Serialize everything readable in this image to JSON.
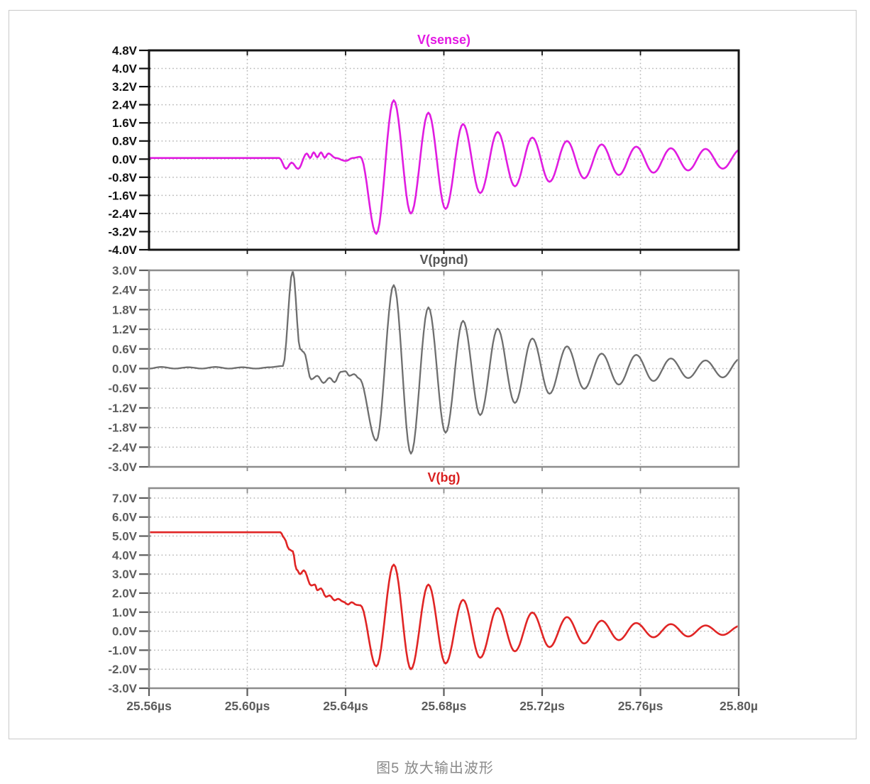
{
  "caption": "图5 放大输出波形",
  "chart_data": {
    "type": "line",
    "description": "Three stacked SPICE transient waveform panes sharing one time axis",
    "t_start": 25.56,
    "t_end": 25.8,
    "time_unit": "µs",
    "grid": "dotted",
    "x_gridlines": [
      25.6,
      25.64,
      25.68,
      25.72,
      25.76
    ],
    "x_ticks": [
      {
        "t": 25.56,
        "label": "25.56µs"
      },
      {
        "t": 25.6,
        "label": "25.60µs"
      },
      {
        "t": 25.64,
        "label": "25.64µs"
      },
      {
        "t": 25.68,
        "label": "25.68µs"
      },
      {
        "t": 25.72,
        "label": "25.72µs"
      },
      {
        "t": 25.76,
        "label": "25.76µs"
      },
      {
        "t": 25.8,
        "label": "25.80µ"
      }
    ],
    "x_label_color": "#5c5c5c",
    "panels": [
      {
        "id": "sense",
        "title": "V(sense)",
        "color": "#e01ce0",
        "title_color": "#e318e3",
        "border_color": "#151515",
        "border_width": 3,
        "label_color": "#111111",
        "stroke_width": 2.6,
        "ylim": [
          -4.0,
          4.8
        ],
        "yticks": [
          {
            "v": 4.8,
            "label": "4.8V"
          },
          {
            "v": 4.0,
            "label": "4.0V"
          },
          {
            "v": 3.2,
            "label": "3.2V"
          },
          {
            "v": 2.4,
            "label": "2.4V"
          },
          {
            "v": 1.6,
            "label": "1.6V"
          },
          {
            "v": 0.8,
            "label": "0.8V"
          },
          {
            "v": 0.0,
            "label": "0.0V"
          },
          {
            "v": -0.8,
            "label": "-0.8V"
          },
          {
            "v": -1.6,
            "label": "-1.6V"
          },
          {
            "v": -2.4,
            "label": "-2.4V"
          },
          {
            "v": -3.2,
            "label": "-3.2V"
          },
          {
            "v": -4.0,
            "label": "-4.0V"
          }
        ],
        "points": [
          [
            25.56,
            0.05
          ],
          [
            25.613,
            0.05
          ],
          [
            25.6158,
            -0.43
          ],
          [
            25.618,
            -0.15
          ],
          [
            25.6207,
            -0.43
          ],
          [
            25.6242,
            0.25
          ],
          [
            25.6256,
            0.05
          ],
          [
            25.627,
            0.3
          ],
          [
            25.6285,
            0.08
          ],
          [
            25.63,
            0.3
          ],
          [
            25.6315,
            0.06
          ],
          [
            25.633,
            0.25
          ],
          [
            25.636,
            0.05
          ],
          [
            25.64,
            -0.08
          ],
          [
            25.643,
            0.05
          ],
          [
            25.646,
            0.1
          ],
          [
            25.6525,
            -3.3
          ],
          [
            25.6596,
            2.6
          ],
          [
            25.6666,
            -2.4
          ],
          [
            25.6737,
            2.05
          ],
          [
            25.6807,
            -2.2
          ],
          [
            25.6878,
            1.55
          ],
          [
            25.6948,
            -1.5
          ],
          [
            25.7019,
            1.2
          ],
          [
            25.7089,
            -1.2
          ],
          [
            25.716,
            0.95
          ],
          [
            25.723,
            -1.0
          ],
          [
            25.7301,
            0.8
          ],
          [
            25.7371,
            -0.85
          ],
          [
            25.7442,
            0.65
          ],
          [
            25.7512,
            -0.7
          ],
          [
            25.7583,
            0.55
          ],
          [
            25.7653,
            -0.6
          ],
          [
            25.7724,
            0.48
          ],
          [
            25.7794,
            -0.5
          ],
          [
            25.7865,
            0.45
          ],
          [
            25.7935,
            -0.42
          ],
          [
            25.8006,
            0.42
          ]
        ]
      },
      {
        "id": "pgnd",
        "title": "V(pgnd)",
        "color": "#6e6e6e",
        "title_color": "#565656",
        "border_color": "#8c8c8c",
        "border_width": 2.5,
        "label_color": "#5c5c5c",
        "stroke_width": 2.3,
        "ylim": [
          -3.0,
          3.0
        ],
        "yticks": [
          {
            "v": 3.0,
            "label": "3.0V"
          },
          {
            "v": 2.4,
            "label": "2.4V"
          },
          {
            "v": 1.8,
            "label": "1.8V"
          },
          {
            "v": 1.2,
            "label": "1.2V"
          },
          {
            "v": 0.6,
            "label": "0.6V"
          },
          {
            "v": 0.0,
            "label": "0.0V"
          },
          {
            "v": -0.6,
            "label": "-0.6V"
          },
          {
            "v": -1.2,
            "label": "-1.2V"
          },
          {
            "v": -1.8,
            "label": "-1.8V"
          },
          {
            "v": -2.4,
            "label": "-2.4V"
          },
          {
            "v": -3.0,
            "label": "-3.0V"
          }
        ],
        "points": [
          [
            25.56,
            0.0
          ],
          [
            25.565,
            0.05
          ],
          [
            25.5705,
            0.0
          ],
          [
            25.576,
            0.04
          ],
          [
            25.5815,
            0.0
          ],
          [
            25.587,
            0.05
          ],
          [
            25.5925,
            0.0
          ],
          [
            25.598,
            0.04
          ],
          [
            25.6035,
            0.0
          ],
          [
            25.609,
            0.04
          ],
          [
            25.6145,
            0.08
          ],
          [
            25.6185,
            2.98
          ],
          [
            25.6215,
            0.6
          ],
          [
            25.623,
            0.5
          ],
          [
            25.626,
            -0.33
          ],
          [
            25.6285,
            -0.22
          ],
          [
            25.631,
            -0.44
          ],
          [
            25.6335,
            -0.28
          ],
          [
            25.6355,
            -0.42
          ],
          [
            25.638,
            -0.1
          ],
          [
            25.64,
            -0.08
          ],
          [
            25.6415,
            -0.22
          ],
          [
            25.6435,
            -0.17
          ],
          [
            25.6455,
            -0.3
          ],
          [
            25.6525,
            -2.2
          ],
          [
            25.6596,
            2.55
          ],
          [
            25.6666,
            -2.6
          ],
          [
            25.6737,
            1.87
          ],
          [
            25.6807,
            -1.96
          ],
          [
            25.6878,
            1.46
          ],
          [
            25.6948,
            -1.42
          ],
          [
            25.7019,
            1.22
          ],
          [
            25.7089,
            -1.05
          ],
          [
            25.716,
            0.92
          ],
          [
            25.723,
            -0.77
          ],
          [
            25.7301,
            0.68
          ],
          [
            25.7371,
            -0.62
          ],
          [
            25.7442,
            0.46
          ],
          [
            25.7512,
            -0.49
          ],
          [
            25.7583,
            0.42
          ],
          [
            25.7653,
            -0.38
          ],
          [
            25.7724,
            0.31
          ],
          [
            25.7794,
            -0.29
          ],
          [
            25.7865,
            0.25
          ],
          [
            25.7935,
            -0.27
          ],
          [
            25.8006,
            0.3
          ]
        ]
      },
      {
        "id": "bg",
        "title": "V(bg)",
        "color": "#e02525",
        "title_color": "#d92020",
        "border_color": "#8c8c8c",
        "border_width": 2.5,
        "label_color": "#5c5c5c",
        "stroke_width": 2.6,
        "ylim": [
          -3.0,
          7.52
        ],
        "yticks": [
          {
            "v": 7.0,
            "label": "7.0V"
          },
          {
            "v": 6.0,
            "label": "6.0V"
          },
          {
            "v": 5.0,
            "label": "5.0V"
          },
          {
            "v": 4.0,
            "label": "4.0V"
          },
          {
            "v": 3.0,
            "label": "3.0V"
          },
          {
            "v": 2.0,
            "label": "2.0V"
          },
          {
            "v": 1.0,
            "label": "1.0V"
          },
          {
            "v": 0.0,
            "label": "0.0V"
          },
          {
            "v": -1.0,
            "label": "-1.0V"
          },
          {
            "v": -2.0,
            "label": "-2.0V"
          },
          {
            "v": -3.0,
            "label": "-3.0V"
          }
        ],
        "points": [
          [
            25.56,
            5.2
          ],
          [
            25.6135,
            5.2
          ],
          [
            25.615,
            4.9
          ],
          [
            25.617,
            4.3
          ],
          [
            25.6185,
            4.2
          ],
          [
            25.62,
            3.25
          ],
          [
            25.6215,
            3.0
          ],
          [
            25.623,
            3.2
          ],
          [
            25.626,
            2.4
          ],
          [
            25.6275,
            2.45
          ],
          [
            25.6285,
            2.15
          ],
          [
            25.63,
            2.25
          ],
          [
            25.632,
            1.8
          ],
          [
            25.6335,
            1.88
          ],
          [
            25.6355,
            1.62
          ],
          [
            25.637,
            1.7
          ],
          [
            25.639,
            1.55
          ],
          [
            25.641,
            1.4
          ],
          [
            25.6425,
            1.52
          ],
          [
            25.6445,
            1.38
          ],
          [
            25.646,
            1.36
          ],
          [
            25.6525,
            -1.85
          ],
          [
            25.6596,
            3.5
          ],
          [
            25.6666,
            -2.0
          ],
          [
            25.6737,
            2.45
          ],
          [
            25.6807,
            -1.7
          ],
          [
            25.6878,
            1.65
          ],
          [
            25.6948,
            -1.4
          ],
          [
            25.7019,
            1.22
          ],
          [
            25.7089,
            -1.06
          ],
          [
            25.716,
            0.98
          ],
          [
            25.723,
            -0.84
          ],
          [
            25.7301,
            0.74
          ],
          [
            25.7371,
            -0.65
          ],
          [
            25.7442,
            0.55
          ],
          [
            25.7512,
            -0.47
          ],
          [
            25.7583,
            0.43
          ],
          [
            25.7653,
            -0.32
          ],
          [
            25.7724,
            0.37
          ],
          [
            25.7794,
            -0.28
          ],
          [
            25.7865,
            0.3
          ],
          [
            25.7935,
            -0.2
          ],
          [
            25.8006,
            0.28
          ]
        ]
      }
    ]
  }
}
